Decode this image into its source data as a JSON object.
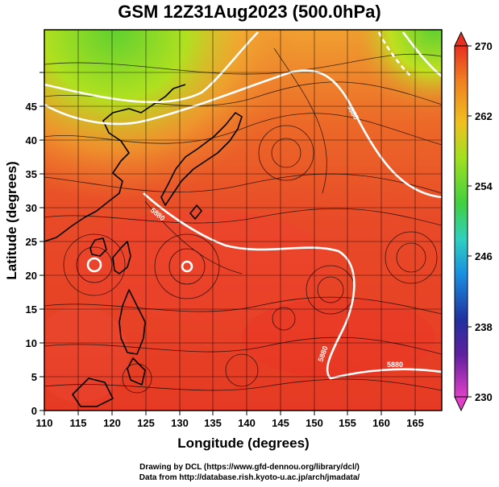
{
  "title": "GSM 12Z31Aug2023 (500.0hPa)",
  "axes": {
    "xlabel": "Longitude (degrees)",
    "ylabel": "Latitude (degrees)",
    "x_ticks": [
      "110",
      "115",
      "120",
      "125",
      "130",
      "135",
      "140",
      "145",
      "150",
      "155",
      "160",
      "165"
    ],
    "y_ticks": [
      "0",
      "5",
      "10",
      "15",
      "20",
      "25",
      "30",
      "35",
      "40",
      "45"
    ],
    "xlim": [
      110,
      169
    ],
    "ylim": [
      0,
      50
    ]
  },
  "colorbar": {
    "ticks": [
      "230",
      "238",
      "246",
      "254",
      "262",
      "270"
    ],
    "range": [
      230,
      270
    ],
    "colors": [
      "#e040c8",
      "#2030a0",
      "#1890e0",
      "#30d0c0",
      "#40d040",
      "#a0e020",
      "#f0c020",
      "#f08020",
      "#e83020"
    ]
  },
  "contour_labels": [
    "5880",
    "5880",
    "5880",
    "5880"
  ],
  "credits": {
    "line1": "Drawing by DCL (https://www.gfd-dennou.org/library/dcl/)",
    "line2": "Data from http://database.rish.kyoto-u.ac.jp/arch/jmadata/"
  }
}
